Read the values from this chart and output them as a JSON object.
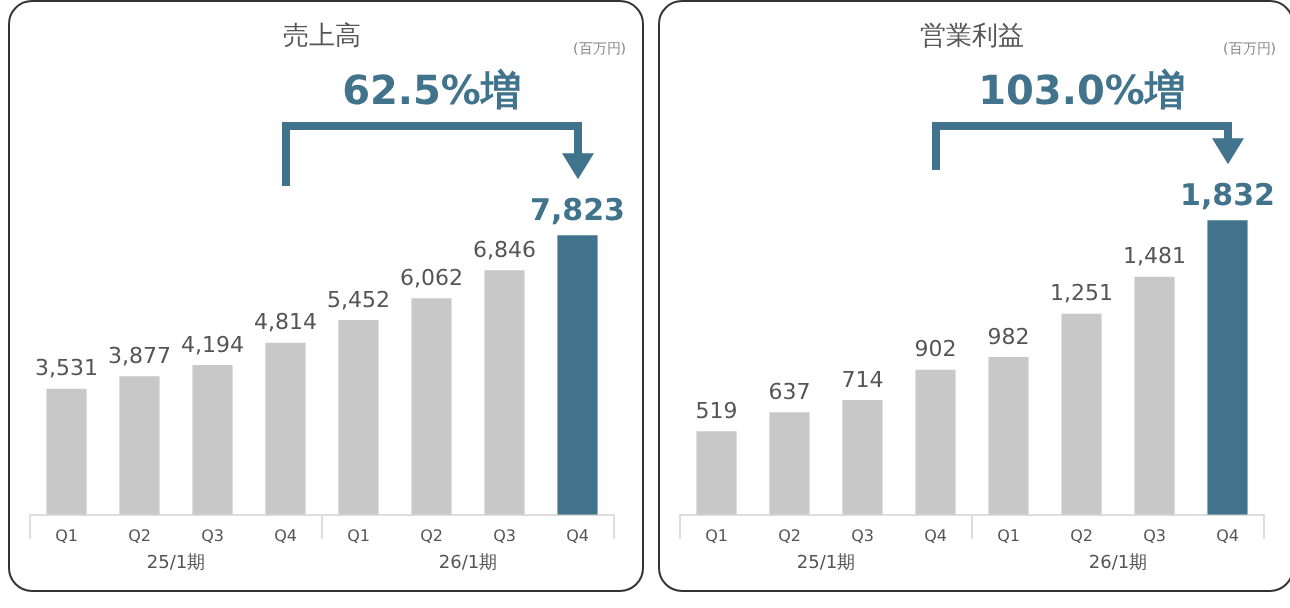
{
  "chart_data": [
    {
      "type": "bar",
      "title": "売上高",
      "categories": [
        "Q1",
        "Q2",
        "Q3",
        "Q4",
        "Q1",
        "Q2",
        "Q3",
        "Q4"
      ],
      "values": [
        3531,
        3877,
        4194,
        4814,
        5452,
        6062,
        6846,
        7823
      ],
      "value_labels": [
        "3,531",
        "3,877",
        "4,194",
        "4,814",
        "5,452",
        "6,062",
        "6,846",
        "7,823"
      ],
      "colors": [
        "#c8c8c8",
        "#c8c8c8",
        "#c8c8c8",
        "#c8c8c8",
        "#c8c8c8",
        "#c8c8c8",
        "#c8c8c8",
        "#41738c"
      ],
      "grid": false,
      "legend": false,
      "annotations": [
        "62.5%増",
        "25/1期",
        "26/1期",
        "(百万円)"
      ]
    },
    {
      "type": "bar",
      "title": "営業利益",
      "categories": [
        "Q1",
        "Q2",
        "Q3",
        "Q4",
        "Q1",
        "Q2",
        "Q3",
        "Q4"
      ],
      "values": [
        519,
        637,
        714,
        902,
        982,
        1251,
        1481,
        1832
      ],
      "value_labels": [
        "519",
        "637",
        "714",
        "902",
        "982",
        "1,251",
        "1,481",
        "1,832"
      ],
      "colors": [
        "#c8c8c8",
        "#c8c8c8",
        "#c8c8c8",
        "#c8c8c8",
        "#c8c8c8",
        "#c8c8c8",
        "#c8c8c8",
        "#41738c"
      ],
      "grid": false,
      "legend": false,
      "annotations": [
        "103.0%増",
        "25/1期",
        "26/1期",
        "(百万円)"
      ]
    }
  ]
}
